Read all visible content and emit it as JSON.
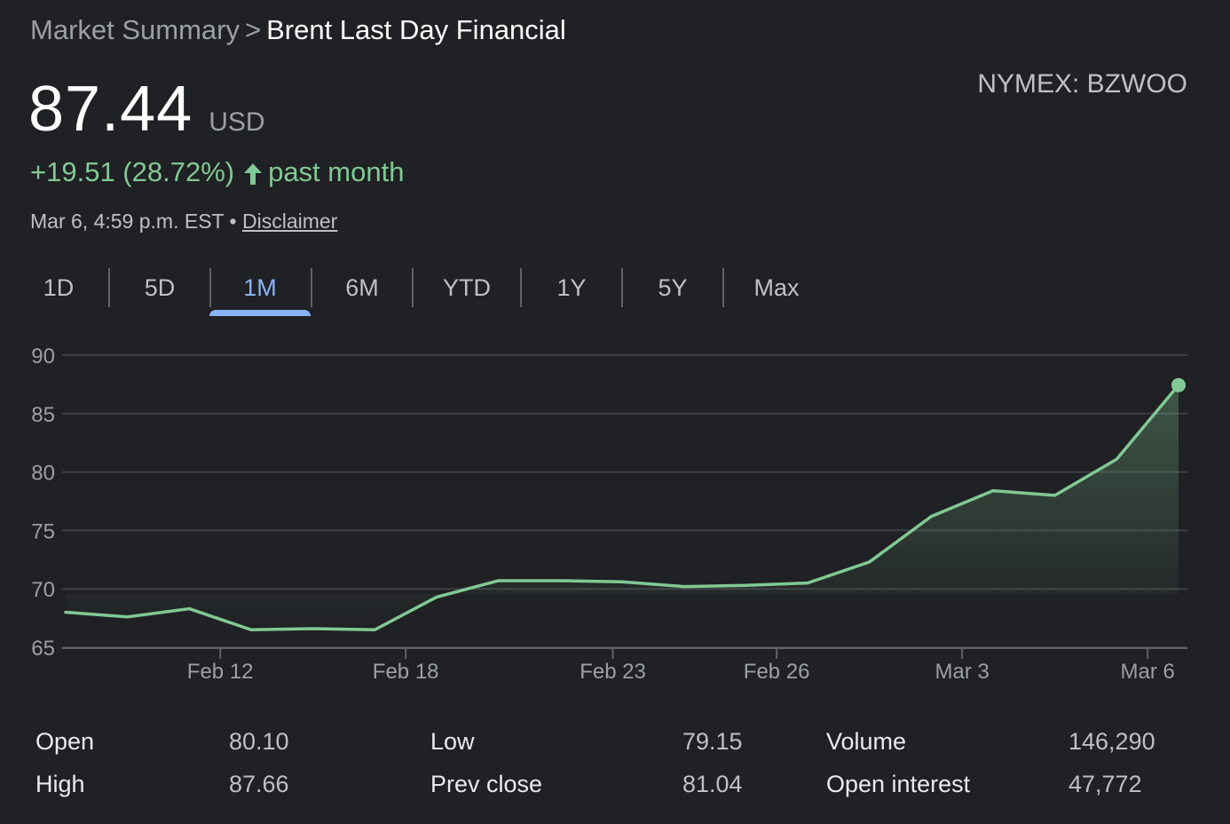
{
  "breadcrumb": {
    "parent": "Market Summary",
    "separator": ">",
    "current": "Brent Last Day Financial"
  },
  "quote": {
    "price": "87.44",
    "currency": "USD",
    "exchange": "NYMEX: BZWOO",
    "change": "+19.51 (28.72%)",
    "period": "past month",
    "timestamp": "Mar 6, 4:59 p.m. EST •",
    "disclaimer": "Disclaimer"
  },
  "tabs": [
    {
      "label": "1D",
      "active": false
    },
    {
      "label": "5D",
      "active": false
    },
    {
      "label": "1M",
      "active": true
    },
    {
      "label": "6M",
      "active": false
    },
    {
      "label": "YTD",
      "active": false
    },
    {
      "label": "1Y",
      "active": false
    },
    {
      "label": "5Y",
      "active": false
    },
    {
      "label": "Max",
      "active": false
    }
  ],
  "colors": {
    "positive": "#81c995",
    "accent": "#8ab4f8",
    "grid": "#3c4043"
  },
  "chart_data": {
    "type": "area",
    "title": "",
    "xlabel": "",
    "ylabel": "",
    "ylim": [
      65,
      90
    ],
    "yticks": [
      90,
      85,
      80,
      75,
      70,
      65
    ],
    "x_tick_labels": [
      "Feb 12",
      "Feb 18",
      "Feb 23",
      "Feb 26",
      "Mar 3",
      "Mar 6"
    ],
    "x_tick_index": [
      2.5,
      5.5,
      8.85,
      11.5,
      14.5,
      17.5
    ],
    "series": [
      {
        "name": "Brent Last Day Financial",
        "values": [
          68.0,
          67.6,
          68.3,
          66.5,
          66.6,
          66.5,
          69.3,
          70.7,
          70.7,
          70.6,
          70.2,
          70.3,
          70.5,
          72.3,
          76.2,
          78.4,
          78.0,
          81.1,
          87.44
        ]
      }
    ]
  },
  "stats": [
    {
      "label": "Open",
      "value": "80.10"
    },
    {
      "label": "High",
      "value": "87.66"
    },
    {
      "label": "Low",
      "value": "79.15"
    },
    {
      "label": "Prev close",
      "value": "81.04"
    },
    {
      "label": "Volume",
      "value": "146,290"
    },
    {
      "label": "Open interest",
      "value": "47,772"
    }
  ]
}
